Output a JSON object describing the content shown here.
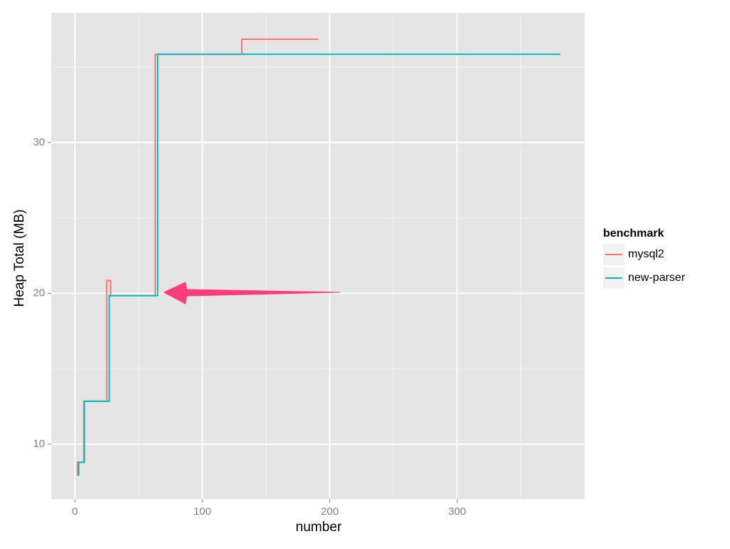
{
  "chart_data": {
    "type": "line",
    "xlabel": "number",
    "ylabel": "Heap Total (MB)",
    "xlim": [
      -18.5,
      400
    ],
    "ylim": [
      6.36,
      38.6
    ],
    "xticks": [
      0,
      100,
      200,
      300
    ],
    "yticks": [
      10,
      20,
      30
    ],
    "x_minor_grid": [
      50,
      150,
      250,
      350
    ],
    "y_minor_grid": [
      15,
      25,
      35
    ],
    "grid": true,
    "legend_title": "benchmark",
    "legend_position": "right",
    "series": [
      {
        "name": "mysql2",
        "color": "#F8766D",
        "x": [
          2,
          2,
          7,
          7,
          25,
          25,
          28,
          28,
          63,
          63,
          131,
          131,
          191
        ],
        "values": [
          7.9,
          8.8,
          8.8,
          12.85,
          12.85,
          20.85,
          20.85,
          19.85,
          19.85,
          35.85,
          35.85,
          36.85,
          36.85
        ]
      },
      {
        "name": "new-parser",
        "color": "#00BFC4",
        "x": [
          3,
          3,
          7.5,
          7.5,
          27,
          27,
          65,
          65,
          381
        ],
        "values": [
          7.9,
          8.8,
          8.8,
          12.85,
          12.85,
          19.85,
          19.85,
          35.85,
          35.85
        ]
      }
    ]
  }
}
